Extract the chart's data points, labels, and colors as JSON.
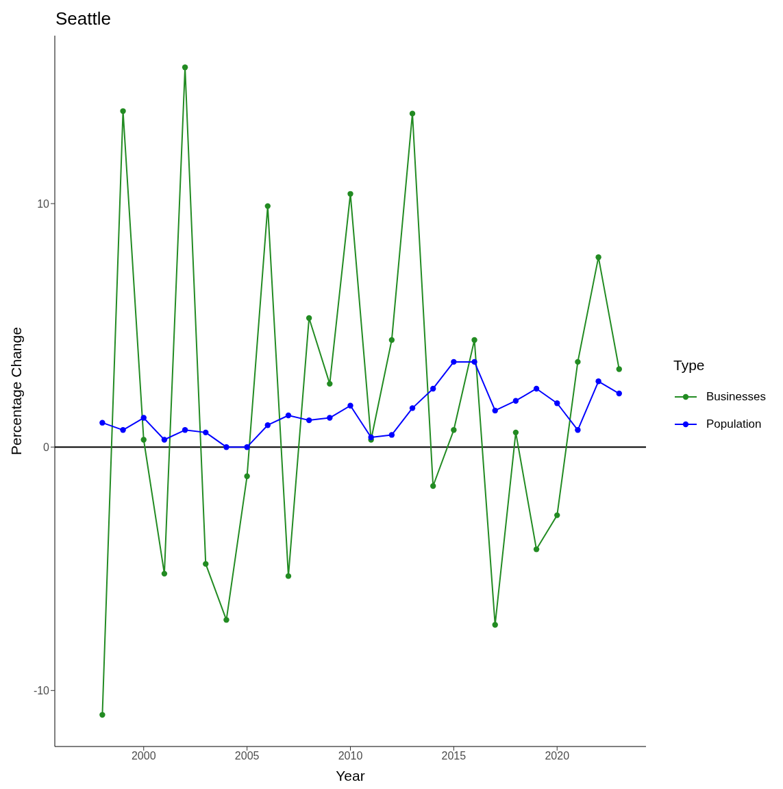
{
  "chart_data": {
    "type": "line",
    "title": "Seattle",
    "xlabel": "Year",
    "ylabel": "Percentage Change",
    "legend_title": "Type",
    "x": [
      1998,
      1999,
      2000,
      2001,
      2002,
      2003,
      2004,
      2005,
      2006,
      2007,
      2008,
      2009,
      2010,
      2011,
      2012,
      2013,
      2014,
      2015,
      2016,
      2017,
      2018,
      2019,
      2020,
      2021,
      2022,
      2023
    ],
    "series": [
      {
        "name": "Businesses",
        "color": "#228b22",
        "values": [
          -11.0,
          13.8,
          0.3,
          -5.2,
          15.6,
          -4.8,
          -7.1,
          -1.2,
          9.9,
          -5.3,
          5.3,
          2.6,
          10.4,
          0.3,
          4.4,
          13.7,
          -1.6,
          0.7,
          4.4,
          -7.3,
          0.6,
          -4.2,
          -2.8,
          3.5,
          7.8,
          3.2
        ]
      },
      {
        "name": "Population",
        "color": "#0000ff",
        "values": [
          1.0,
          0.7,
          1.2,
          0.3,
          0.7,
          0.6,
          0.0,
          0.0,
          0.9,
          1.3,
          1.1,
          1.2,
          1.7,
          0.4,
          0.5,
          1.6,
          2.4,
          3.5,
          3.5,
          1.5,
          1.9,
          2.4,
          1.8,
          0.7,
          2.7,
          2.2
        ]
      }
    ],
    "xlim": [
      1995.7,
      2024.3
    ],
    "xticks": [
      2000,
      2005,
      2010,
      2015,
      2020
    ],
    "ylim": [
      -12.3,
      16.9
    ],
    "yticks": [
      -10,
      0,
      10
    ],
    "ref_lines": [
      {
        "axis": "y",
        "value": 0,
        "color": "#000000"
      }
    ],
    "grid": false,
    "legend": "right",
    "marker": "circle",
    "line_style": "solid"
  }
}
